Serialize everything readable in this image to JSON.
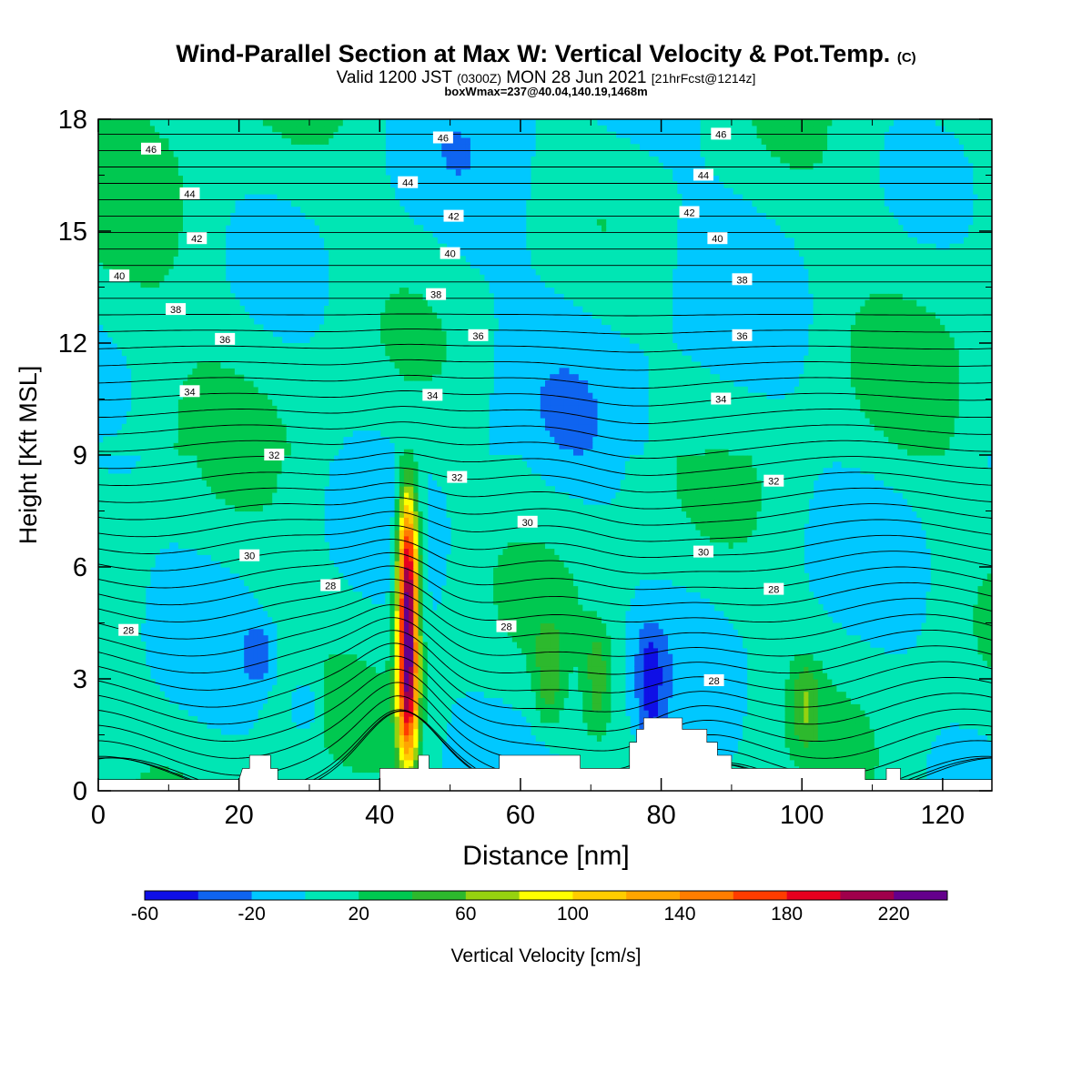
{
  "title": {
    "main": "Wind-Parallel Section at Max W: Vertical Velocity & Pot.Temp.",
    "mark": "(C)"
  },
  "valid_line": {
    "a": "Valid 1200 JST",
    "b": "(0300Z)",
    "c": "MON 28 Jun 2021",
    "d": "[21hrFcst@1214z]"
  },
  "box_line": "boxWmax=237@40.04,140.19,1468m",
  "colors": {
    "bins": [
      "#0f0fe6",
      "#0f64f0",
      "#00c8ff",
      "#00e6b4",
      "#00c850",
      "#2db92d",
      "#96d20f",
      "#ffff00",
      "#ffcd00",
      "#ffa500",
      "#ff7d00",
      "#ff3c00",
      "#e6001e",
      "#a0004b",
      "#64008c"
    ],
    "terrain": "#ffffff",
    "contour": "#000000"
  },
  "chart_data": {
    "type": "heatmap",
    "xlabel": "Distance [nm]",
    "ylabel": "Height [Kft MSL]",
    "xlim": [
      0,
      127
    ],
    "ylim": [
      0,
      18
    ],
    "xticks": [
      0,
      20,
      40,
      60,
      80,
      100,
      120
    ],
    "yticks": [
      0,
      3,
      6,
      9,
      12,
      15,
      18
    ],
    "colorbar": {
      "label": "Vertical Velocity [cm/s]",
      "bounds": [
        -60,
        -40,
        -20,
        0,
        20,
        40,
        60,
        80,
        100,
        120,
        140,
        160,
        180,
        200,
        220,
        240
      ],
      "tick_labels": [
        -60,
        -20,
        20,
        60,
        100,
        140,
        180,
        220
      ]
    },
    "vertical_velocity_features": [
      {
        "x": 44,
        "z_base": 0.8,
        "z_top": 8,
        "peak": 237
      },
      {
        "x": 78.5,
        "z_base": 1.3,
        "z_top": 4.4,
        "peak": -45
      },
      {
        "x": 22.8,
        "z_base": 2.8,
        "z_top": 4.5,
        "peak": -30
      },
      {
        "x": 29.5,
        "z_base": 1.5,
        "z_top": 3,
        "peak": -30
      },
      {
        "x": 64,
        "z_base": 1.7,
        "z_top": 4.5,
        "peak": 40
      },
      {
        "x": 71,
        "z_base": 1.5,
        "z_top": 4.5,
        "peak": 40
      },
      {
        "x": 100.5,
        "z_base": 1.2,
        "z_top": 3.5,
        "peak": 40
      }
    ],
    "terrain_kft": [
      [
        0,
        0.3
      ],
      [
        20,
        0.3
      ],
      [
        20.5,
        0.6
      ],
      [
        21.5,
        0.6
      ],
      [
        21.5,
        0.95
      ],
      [
        24.5,
        0.95
      ],
      [
        24.5,
        0.6
      ],
      [
        25.5,
        0.6
      ],
      [
        25.5,
        0.3
      ],
      [
        40,
        0.3
      ],
      [
        40,
        0.6
      ],
      [
        45.5,
        0.6
      ],
      [
        45.5,
        0.95
      ],
      [
        47,
        0.95
      ],
      [
        47,
        0.6
      ],
      [
        57,
        0.6
      ],
      [
        57,
        0.95
      ],
      [
        68.5,
        0.95
      ],
      [
        68.5,
        0.6
      ],
      [
        75.5,
        0.6
      ],
      [
        75.5,
        1.3
      ],
      [
        76.5,
        1.3
      ],
      [
        76.5,
        1.65
      ],
      [
        77.5,
        1.65
      ],
      [
        77.5,
        1.95
      ],
      [
        83,
        1.95
      ],
      [
        83,
        1.65
      ],
      [
        86.5,
        1.65
      ],
      [
        86.5,
        1.3
      ],
      [
        88,
        1.3
      ],
      [
        88,
        0.95
      ],
      [
        90,
        0.95
      ],
      [
        90,
        0.6
      ],
      [
        109,
        0.6
      ],
      [
        109,
        0.3
      ],
      [
        112,
        0.3
      ],
      [
        112,
        0.6
      ],
      [
        114,
        0.6
      ],
      [
        114,
        0.3
      ],
      [
        127,
        0.3
      ]
    ],
    "theta_contours_C": [
      {
        "value": 28,
        "labels": [
          [
            4.3,
            4.3
          ],
          [
            33,
            5.5
          ],
          [
            58,
            4.4
          ],
          [
            87.5,
            2.95
          ],
          [
            96,
            5.4
          ]
        ]
      },
      {
        "value": 30,
        "labels": [
          [
            21.5,
            6.3
          ],
          [
            61,
            7.2
          ],
          [
            86,
            6.4
          ]
        ]
      },
      {
        "value": 32,
        "labels": [
          [
            25,
            9.0
          ],
          [
            51,
            8.4
          ],
          [
            96,
            8.3
          ]
        ]
      },
      {
        "value": 34,
        "labels": [
          [
            13,
            10.7
          ],
          [
            47.5,
            10.6
          ],
          [
            88.5,
            10.5
          ]
        ]
      },
      {
        "value": 36,
        "labels": [
          [
            18,
            12.1
          ],
          [
            54,
            12.2
          ],
          [
            91.5,
            12.2
          ]
        ]
      },
      {
        "value": 38,
        "labels": [
          [
            11,
            12.9
          ],
          [
            48,
            13.3
          ],
          [
            91.5,
            13.7
          ]
        ]
      },
      {
        "value": 40,
        "labels": [
          [
            3,
            13.8
          ],
          [
            50,
            14.4
          ],
          [
            88,
            14.8
          ]
        ]
      },
      {
        "value": 42,
        "labels": [
          [
            14,
            14.8
          ],
          [
            50.5,
            15.4
          ],
          [
            84,
            15.5
          ]
        ]
      },
      {
        "value": 44,
        "labels": [
          [
            13,
            16.0
          ],
          [
            44,
            16.3
          ],
          [
            86,
            16.5
          ]
        ]
      },
      {
        "value": 46,
        "labels": [
          [
            7.5,
            17.2
          ],
          [
            49,
            17.5
          ],
          [
            88.5,
            17.6
          ]
        ]
      }
    ],
    "grid": false,
    "legend": "bottom"
  }
}
